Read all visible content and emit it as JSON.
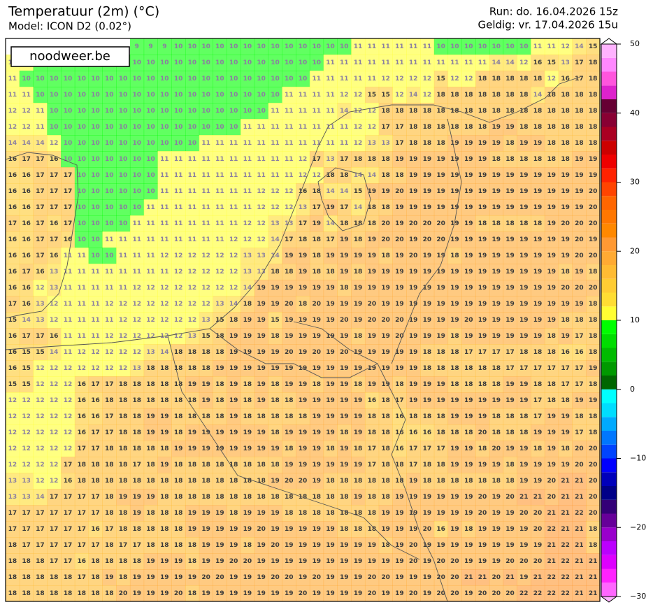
{
  "header": {
    "title": "Temperatuur (2m) (°C)",
    "subtitle": "Model: ICON D2 (0.02°)",
    "run": "Run: do. 16.04.2026 15z",
    "valid": "Geldig: vr. 17.04.2026 15u"
  },
  "logo": "noodweer.be",
  "colorbar": {
    "lim": [
      -30,
      50
    ],
    "ticks": [
      {
        "value": -30,
        "label": "−30"
      },
      {
        "value": -20,
        "label": "−20"
      },
      {
        "value": -10,
        "label": "−10"
      },
      0,
      10,
      20,
      30,
      40,
      50
    ],
    "colors": [
      "#ff66ff",
      "#ff22ff",
      "#dd00ff",
      "#bb00ff",
      "#9900cc",
      "#660099",
      "#330077",
      "#000088",
      "#0000bb",
      "#0000ff",
      "#0044ff",
      "#0077ff",
      "#00aaff",
      "#00ddff",
      "#00ffff",
      "#006600",
      "#009900",
      "#00bb00",
      "#00dd00",
      "#00ff00",
      "#ffff33",
      "#ffdd33",
      "#ffcc33",
      "#ffbb33",
      "#ffaa33",
      "#ff9933",
      "#ff8800",
      "#ff7700",
      "#ff6600",
      "#ff4400",
      "#ff2200",
      "#ee0000",
      "#cc0000",
      "#aa0022",
      "#880033",
      "#660033",
      "#dd22cc",
      "#ff55dd",
      "#ff88ff",
      "#ffb3ff"
    ]
  },
  "map": {
    "grid": [
      [
        null,
        null,
        null,
        null,
        null,
        null,
        null,
        null,
        null,
        9,
        9,
        9,
        10,
        10,
        10,
        10,
        10,
        10,
        10,
        10,
        10,
        10,
        10,
        10,
        10,
        11,
        11,
        11,
        11,
        11,
        11,
        10,
        10,
        10,
        10,
        10,
        10,
        10,
        11,
        11,
        12,
        14,
        15
      ],
      [
        12,
        11,
        10,
        10,
        10,
        10,
        10,
        10,
        10,
        10,
        10,
        10,
        10,
        10,
        10,
        10,
        10,
        10,
        10,
        10,
        10,
        10,
        10,
        11,
        11,
        11,
        11,
        11,
        11,
        11,
        11,
        11,
        11,
        11,
        11,
        14,
        14,
        12,
        16,
        15,
        13,
        17,
        18
      ],
      [
        11,
        10,
        10,
        10,
        10,
        10,
        10,
        10,
        10,
        10,
        10,
        10,
        10,
        10,
        10,
        10,
        10,
        10,
        10,
        10,
        10,
        10,
        11,
        11,
        11,
        11,
        11,
        12,
        12,
        12,
        12,
        15,
        12,
        12,
        18,
        18,
        18,
        18,
        18,
        12,
        16,
        17,
        18
      ],
      [
        11,
        11,
        10,
        10,
        10,
        10,
        10,
        10,
        10,
        10,
        10,
        10,
        10,
        10,
        10,
        10,
        10,
        10,
        10,
        10,
        11,
        11,
        11,
        11,
        12,
        12,
        15,
        15,
        12,
        14,
        12,
        18,
        18,
        18,
        18,
        18,
        18,
        18,
        14,
        18,
        18,
        18,
        18
      ],
      [
        12,
        12,
        11,
        10,
        10,
        10,
        10,
        10,
        10,
        10,
        10,
        10,
        10,
        10,
        10,
        10,
        10,
        10,
        10,
        11,
        11,
        11,
        11,
        11,
        14,
        12,
        12,
        18,
        18,
        18,
        18,
        18,
        18,
        18,
        18,
        18,
        18,
        18,
        18,
        18,
        18,
        18,
        18
      ],
      [
        12,
        12,
        11,
        10,
        10,
        10,
        10,
        10,
        10,
        10,
        10,
        10,
        10,
        10,
        10,
        10,
        10,
        11,
        11,
        11,
        11,
        11,
        11,
        11,
        11,
        12,
        12,
        17,
        17,
        18,
        18,
        18,
        18,
        18,
        18,
        19,
        19,
        18,
        18,
        18,
        18,
        18,
        18
      ],
      [
        14,
        14,
        14,
        12,
        10,
        10,
        10,
        10,
        10,
        10,
        10,
        10,
        10,
        10,
        11,
        11,
        11,
        11,
        11,
        11,
        11,
        11,
        11,
        11,
        11,
        12,
        13,
        13,
        17,
        18,
        18,
        18,
        19,
        19,
        19,
        19,
        18,
        19,
        19,
        18,
        18,
        18,
        18
      ],
      [
        16,
        17,
        17,
        16,
        10,
        10,
        10,
        10,
        10,
        10,
        10,
        11,
        11,
        11,
        11,
        11,
        11,
        11,
        11,
        11,
        11,
        12,
        17,
        13,
        17,
        18,
        18,
        18,
        19,
        19,
        19,
        19,
        19,
        19,
        19,
        18,
        18,
        18,
        18,
        18,
        18,
        19,
        19
      ],
      [
        16,
        16,
        17,
        17,
        17,
        10,
        10,
        10,
        10,
        10,
        10,
        11,
        11,
        11,
        11,
        11,
        11,
        11,
        11,
        11,
        11,
        12,
        12,
        18,
        18,
        14,
        14,
        18,
        18,
        19,
        19,
        19,
        19,
        19,
        19,
        19,
        19,
        19,
        19,
        19,
        19,
        19,
        19
      ],
      [
        16,
        16,
        17,
        17,
        17,
        10,
        10,
        10,
        10,
        10,
        10,
        11,
        11,
        11,
        11,
        11,
        11,
        11,
        12,
        12,
        12,
        16,
        18,
        14,
        14,
        15,
        19,
        19,
        20,
        19,
        19,
        19,
        19,
        19,
        19,
        19,
        19,
        19,
        19,
        19,
        19,
        19,
        20
      ],
      [
        16,
        16,
        17,
        17,
        17,
        10,
        10,
        10,
        10,
        10,
        11,
        11,
        11,
        11,
        11,
        11,
        11,
        11,
        12,
        12,
        12,
        13,
        17,
        19,
        17,
        14,
        18,
        18,
        19,
        19,
        19,
        19,
        19,
        19,
        19,
        19,
        19,
        19,
        19,
        19,
        19,
        19,
        20
      ],
      [
        17,
        16,
        17,
        16,
        17,
        10,
        10,
        10,
        10,
        11,
        11,
        11,
        11,
        11,
        11,
        11,
        11,
        12,
        12,
        13,
        13,
        17,
        19,
        14,
        18,
        18,
        18,
        20,
        19,
        20,
        20,
        20,
        19,
        19,
        18,
        18,
        18,
        18,
        18,
        19,
        20,
        20,
        20
      ],
      [
        16,
        16,
        17,
        17,
        16,
        10,
        10,
        11,
        11,
        11,
        11,
        11,
        11,
        11,
        11,
        11,
        12,
        12,
        12,
        14,
        17,
        18,
        18,
        17,
        19,
        18,
        19,
        20,
        20,
        19,
        20,
        20,
        19,
        19,
        19,
        19,
        19,
        19,
        19,
        19,
        19,
        20,
        19
      ],
      [
        16,
        16,
        17,
        16,
        11,
        11,
        10,
        10,
        11,
        11,
        11,
        12,
        12,
        12,
        12,
        12,
        12,
        13,
        13,
        14,
        19,
        19,
        18,
        19,
        19,
        19,
        19,
        18,
        19,
        20,
        19,
        19,
        18,
        19,
        19,
        19,
        19,
        19,
        19,
        19,
        19,
        20,
        20
      ],
      [
        16,
        17,
        16,
        13,
        11,
        11,
        11,
        11,
        11,
        11,
        11,
        11,
        12,
        12,
        12,
        12,
        12,
        13,
        13,
        18,
        18,
        19,
        18,
        18,
        19,
        18,
        19,
        19,
        19,
        19,
        19,
        19,
        19,
        19,
        19,
        19,
        19,
        19,
        19,
        19,
        18,
        19,
        18
      ],
      [
        16,
        16,
        12,
        13,
        11,
        11,
        11,
        11,
        11,
        12,
        12,
        12,
        12,
        12,
        12,
        12,
        12,
        14,
        19,
        19,
        19,
        19,
        19,
        19,
        18,
        19,
        19,
        19,
        19,
        19,
        19,
        19,
        19,
        19,
        19,
        19,
        19,
        19,
        19,
        19,
        20,
        20,
        20
      ],
      [
        17,
        16,
        13,
        12,
        11,
        11,
        11,
        12,
        12,
        12,
        12,
        12,
        12,
        12,
        12,
        13,
        14,
        18,
        19,
        19,
        20,
        18,
        20,
        19,
        19,
        19,
        20,
        19,
        19,
        19,
        19,
        19,
        19,
        19,
        19,
        19,
        19,
        19,
        19,
        19,
        19,
        19,
        18
      ],
      [
        15,
        14,
        13,
        12,
        11,
        11,
        11,
        11,
        12,
        12,
        12,
        12,
        12,
        12,
        13,
        15,
        18,
        19,
        19,
        15,
        19,
        19,
        19,
        19,
        20,
        19,
        20,
        20,
        20,
        19,
        19,
        19,
        19,
        20,
        19,
        19,
        19,
        19,
        19,
        19,
        18,
        18,
        18
      ],
      [
        16,
        17,
        17,
        16,
        11,
        11,
        11,
        12,
        12,
        12,
        12,
        12,
        12,
        13,
        15,
        18,
        19,
        19,
        19,
        18,
        19,
        19,
        19,
        19,
        19,
        18,
        19,
        19,
        20,
        19,
        19,
        19,
        18,
        19,
        19,
        19,
        19,
        19,
        19,
        18,
        19,
        17,
        18
      ],
      [
        16,
        15,
        15,
        14,
        11,
        12,
        12,
        12,
        12,
        12,
        13,
        14,
        18,
        18,
        18,
        18,
        19,
        19,
        19,
        19,
        20,
        19,
        20,
        19,
        20,
        19,
        19,
        19,
        19,
        19,
        18,
        18,
        18,
        17,
        17,
        17,
        17,
        18,
        18,
        18,
        16,
        16,
        18
      ],
      [
        16,
        15,
        12,
        12,
        12,
        12,
        12,
        12,
        12,
        13,
        18,
        18,
        18,
        18,
        18,
        19,
        19,
        19,
        19,
        19,
        19,
        19,
        19,
        19,
        19,
        19,
        19,
        19,
        19,
        19,
        18,
        18,
        18,
        18,
        18,
        18,
        17,
        17,
        17,
        17,
        17,
        17,
        19
      ],
      [
        15,
        15,
        12,
        12,
        12,
        16,
        17,
        17,
        18,
        18,
        18,
        18,
        18,
        19,
        19,
        18,
        19,
        18,
        19,
        18,
        19,
        19,
        18,
        19,
        19,
        18,
        19,
        19,
        18,
        19,
        19,
        19,
        18,
        18,
        18,
        18,
        19,
        19,
        18,
        18,
        17,
        17,
        18
      ],
      [
        12,
        12,
        12,
        12,
        12,
        16,
        16,
        18,
        18,
        18,
        18,
        18,
        18,
        18,
        19,
        18,
        19,
        18,
        19,
        18,
        18,
        19,
        19,
        19,
        19,
        19,
        16,
        18,
        17,
        19,
        19,
        19,
        19,
        19,
        19,
        19,
        19,
        19,
        17,
        18,
        18,
        19,
        19
      ],
      [
        12,
        12,
        12,
        12,
        12,
        16,
        16,
        17,
        18,
        18,
        19,
        19,
        18,
        18,
        18,
        18,
        19,
        18,
        18,
        18,
        18,
        18,
        19,
        19,
        19,
        19,
        18,
        18,
        16,
        18,
        18,
        18,
        19,
        19,
        19,
        18,
        18,
        18,
        17,
        19,
        19,
        18,
        18
      ],
      [
        12,
        12,
        12,
        12,
        12,
        16,
        17,
        17,
        18,
        18,
        19,
        19,
        18,
        19,
        19,
        19,
        19,
        19,
        19,
        18,
        19,
        19,
        19,
        19,
        18,
        19,
        18,
        18,
        16,
        16,
        16,
        18,
        18,
        18,
        20,
        18,
        18,
        18,
        19,
        19,
        19,
        17,
        18
      ],
      [
        12,
        12,
        12,
        12,
        12,
        17,
        17,
        18,
        18,
        18,
        18,
        18,
        19,
        19,
        19,
        19,
        19,
        19,
        19,
        19,
        18,
        19,
        19,
        18,
        19,
        18,
        17,
        18,
        16,
        17,
        17,
        17,
        19,
        19,
        18,
        20,
        19,
        19,
        18,
        19,
        18,
        20,
        20
      ],
      [
        12,
        12,
        12,
        12,
        17,
        18,
        18,
        18,
        18,
        17,
        18,
        19,
        18,
        18,
        18,
        18,
        18,
        18,
        18,
        18,
        19,
        19,
        19,
        19,
        19,
        19,
        17,
        18,
        18,
        17,
        18,
        18,
        19,
        19,
        19,
        19,
        18,
        19,
        19,
        19,
        19,
        20,
        20
      ],
      [
        13,
        13,
        12,
        12,
        16,
        18,
        18,
        18,
        18,
        18,
        18,
        18,
        18,
        18,
        18,
        18,
        18,
        18,
        18,
        19,
        20,
        20,
        19,
        18,
        18,
        18,
        18,
        18,
        18,
        19,
        18,
        18,
        18,
        18,
        18,
        18,
        18,
        19,
        19,
        20,
        21,
        21,
        20
      ],
      [
        13,
        13,
        14,
        17,
        17,
        17,
        17,
        18,
        19,
        19,
        19,
        18,
        18,
        18,
        18,
        18,
        18,
        18,
        18,
        18,
        18,
        18,
        18,
        18,
        18,
        19,
        18,
        18,
        19,
        19,
        19,
        19,
        19,
        19,
        20,
        19,
        20,
        21,
        21,
        20,
        21,
        21,
        20
      ],
      [
        17,
        17,
        17,
        17,
        17,
        17,
        17,
        18,
        18,
        19,
        18,
        18,
        18,
        19,
        19,
        19,
        18,
        19,
        19,
        19,
        18,
        18,
        18,
        18,
        18,
        18,
        18,
        19,
        19,
        19,
        19,
        19,
        19,
        19,
        20,
        19,
        19,
        20,
        20,
        21,
        21,
        22,
        20
      ],
      [
        17,
        17,
        17,
        17,
        17,
        17,
        16,
        17,
        18,
        18,
        18,
        18,
        18,
        19,
        19,
        19,
        19,
        19,
        20,
        19,
        19,
        19,
        19,
        19,
        18,
        18,
        18,
        19,
        19,
        19,
        20,
        16,
        19,
        18,
        19,
        19,
        19,
        19,
        20,
        22,
        21,
        21,
        18
      ],
      [
        18,
        17,
        17,
        17,
        17,
        17,
        17,
        18,
        17,
        17,
        18,
        18,
        18,
        18,
        19,
        19,
        19,
        18,
        19,
        20,
        19,
        19,
        19,
        19,
        19,
        19,
        19,
        18,
        19,
        20,
        19,
        19,
        19,
        19,
        19,
        19,
        19,
        19,
        19,
        21,
        22,
        21,
        18
      ],
      [
        18,
        18,
        18,
        17,
        17,
        16,
        18,
        18,
        18,
        18,
        19,
        19,
        19,
        18,
        19,
        19,
        20,
        20,
        19,
        19,
        19,
        19,
        19,
        19,
        19,
        19,
        19,
        19,
        19,
        20,
        19,
        20,
        20,
        19,
        19,
        19,
        20,
        20,
        20,
        21,
        22,
        21,
        21
      ],
      [
        18,
        18,
        18,
        18,
        18,
        17,
        18,
        19,
        18,
        19,
        19,
        19,
        19,
        19,
        20,
        20,
        19,
        19,
        19,
        20,
        20,
        19,
        20,
        19,
        19,
        19,
        20,
        20,
        19,
        19,
        19,
        20,
        20,
        21,
        21,
        20,
        21,
        19,
        21,
        22,
        22,
        21,
        21
      ],
      [
        18,
        18,
        18,
        18,
        18,
        18,
        18,
        18,
        20,
        19,
        19,
        19,
        20,
        18,
        19,
        19,
        19,
        19,
        19,
        19,
        19,
        20,
        19,
        19,
        19,
        19,
        20,
        19,
        19,
        20,
        19,
        20,
        20,
        19,
        20,
        20,
        20,
        22,
        22,
        22,
        22,
        21,
        21
      ]
    ]
  }
}
